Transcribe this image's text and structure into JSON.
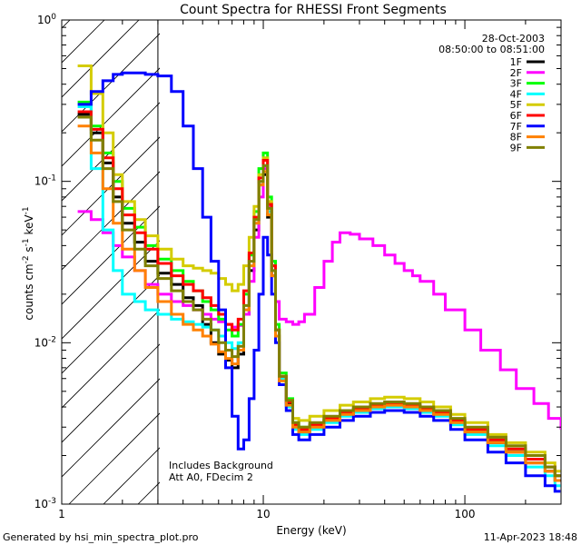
{
  "chart_data": {
    "type": "line",
    "title": "Count Spectra for RHESSI Front Segments",
    "xlabel": "Energy (keV)",
    "ylabel_base": "counts cm",
    "ylabel_exp1": "-2",
    "ylabel_mid": " s",
    "ylabel_exp2": "-1",
    "ylabel_end": " keV",
    "ylabel_exp3": "-1",
    "xscale": "log",
    "yscale": "log",
    "xlim": [
      1,
      300
    ],
    "ylim": [
      0.001,
      1
    ],
    "x_tick_labels": [
      {
        "value": 1,
        "label": "1"
      },
      {
        "value": 10,
        "label": "10"
      },
      {
        "value": 100,
        "label": "100"
      }
    ],
    "y_tick_labels": [
      {
        "value": 1,
        "mant": "10",
        "exp": "0"
      },
      {
        "value": 0.1,
        "mant": "10",
        "exp": "-1"
      },
      {
        "value": 0.01,
        "mant": "10",
        "exp": "-2"
      },
      {
        "value": 0.001,
        "mant": "10",
        "exp": "-3"
      }
    ],
    "attenuator_energy_limit": 3,
    "date": "28-Oct-2003",
    "time_range": "08:50:00 to 08:51:00",
    "notes": [
      "Includes Background",
      "Att A0, FDecim 2"
    ],
    "series": [
      {
        "name": "1F",
        "color": "#000000",
        "x": [
          1.2,
          1.4,
          1.6,
          1.8,
          2.0,
          2.3,
          2.6,
          3.0,
          3.5,
          4.0,
          4.5,
          5.0,
          5.5,
          6.0,
          6.5,
          7.0,
          7.5,
          8.0,
          8.5,
          9.0,
          9.5,
          10.0,
          10.5,
          11.0,
          11.5,
          12.0,
          13.0,
          14.0,
          15.0,
          17.0,
          20.0,
          24.0,
          28.0,
          34.0,
          40.0,
          50.0,
          60.0,
          70.0,
          85.0,
          100.0,
          130.0,
          160.0,
          200.0,
          250.0,
          280.0
        ],
        "y": [
          0.26,
          0.2,
          0.13,
          0.08,
          0.055,
          0.042,
          0.032,
          0.027,
          0.023,
          0.019,
          0.017,
          0.013,
          0.01,
          0.0085,
          0.0078,
          0.007,
          0.0085,
          0.015,
          0.028,
          0.05,
          0.095,
          0.11,
          0.06,
          0.026,
          0.011,
          0.006,
          0.0042,
          0.003,
          0.0028,
          0.003,
          0.0033,
          0.0036,
          0.0038,
          0.004,
          0.0041,
          0.004,
          0.0038,
          0.0036,
          0.0032,
          0.0028,
          0.0024,
          0.0021,
          0.0018,
          0.0016,
          0.0014
        ]
      },
      {
        "name": "2F",
        "color": "#ff00ff",
        "x": [
          1.2,
          1.4,
          1.6,
          1.8,
          2.0,
          2.3,
          2.6,
          3.0,
          3.5,
          4.0,
          4.5,
          5.0,
          5.5,
          6.0,
          6.5,
          7.0,
          7.5,
          8.0,
          8.5,
          9.0,
          9.5,
          10.0,
          10.5,
          11.0,
          11.5,
          12.0,
          13.0,
          14.0,
          15.0,
          16.0,
          18.0,
          20.0,
          22.0,
          24.0,
          27.0,
          30.0,
          35.0,
          40.0,
          45.0,
          50.0,
          55.0,
          60.0,
          70.0,
          80.0,
          100.0,
          120.0,
          150.0,
          180.0,
          220.0,
          260.0,
          300.0
        ],
        "y": [
          0.065,
          0.058,
          0.048,
          0.04,
          0.034,
          0.028,
          0.023,
          0.02,
          0.018,
          0.017,
          0.016,
          0.015,
          0.014,
          0.0135,
          0.013,
          0.0125,
          0.0128,
          0.015,
          0.024,
          0.045,
          0.08,
          0.12,
          0.07,
          0.03,
          0.018,
          0.014,
          0.0135,
          0.013,
          0.0135,
          0.015,
          0.022,
          0.032,
          0.042,
          0.048,
          0.047,
          0.044,
          0.04,
          0.035,
          0.031,
          0.028,
          0.026,
          0.024,
          0.02,
          0.016,
          0.012,
          0.009,
          0.0068,
          0.0052,
          0.0042,
          0.0034,
          0.0029
        ]
      },
      {
        "name": "3F",
        "color": "#00ff00",
        "x": [
          1.2,
          1.4,
          1.6,
          1.8,
          2.0,
          2.3,
          2.6,
          3.0,
          3.5,
          4.0,
          4.5,
          5.0,
          5.5,
          6.0,
          6.5,
          7.0,
          7.5,
          8.0,
          8.5,
          9.0,
          9.5,
          10.0,
          10.5,
          11.0,
          11.5,
          12.0,
          13.0,
          14.0,
          15.0,
          17.0,
          20.0,
          24.0,
          28.0,
          34.0,
          40.0,
          50.0,
          60.0,
          70.0,
          85.0,
          100.0,
          130.0,
          160.0,
          200.0,
          250.0,
          280.0
        ],
        "y": [
          0.31,
          0.22,
          0.15,
          0.1,
          0.068,
          0.052,
          0.04,
          0.033,
          0.028,
          0.024,
          0.021,
          0.018,
          0.016,
          0.014,
          0.012,
          0.011,
          0.013,
          0.02,
          0.035,
          0.065,
          0.12,
          0.15,
          0.08,
          0.032,
          0.013,
          0.0065,
          0.0045,
          0.0032,
          0.003,
          0.0031,
          0.0034,
          0.0037,
          0.0039,
          0.0041,
          0.0042,
          0.0041,
          0.0039,
          0.0037,
          0.0033,
          0.0029,
          0.0025,
          0.0022,
          0.0019,
          0.0017,
          0.0015
        ]
      },
      {
        "name": "4F",
        "color": "#00ffff",
        "x": [
          1.2,
          1.4,
          1.6,
          1.8,
          2.0,
          2.3,
          2.6,
          3.0,
          3.5,
          4.0,
          4.5,
          5.0,
          5.5,
          6.0,
          6.5,
          7.0,
          7.5,
          8.0,
          8.5,
          9.0,
          9.5,
          10.0,
          10.5,
          11.0,
          11.5,
          12.0,
          13.0,
          14.0,
          15.0,
          17.0,
          20.0,
          24.0,
          28.0,
          34.0,
          40.0,
          50.0,
          60.0,
          70.0,
          85.0,
          100.0,
          130.0,
          160.0,
          200.0,
          250.0,
          280.0
        ],
        "y": [
          0.29,
          0.12,
          0.05,
          0.028,
          0.02,
          0.018,
          0.016,
          0.015,
          0.014,
          0.0135,
          0.013,
          0.0125,
          0.012,
          0.011,
          0.01,
          0.0092,
          0.01,
          0.016,
          0.03,
          0.055,
          0.1,
          0.125,
          0.065,
          0.028,
          0.012,
          0.006,
          0.004,
          0.0029,
          0.0027,
          0.0029,
          0.0032,
          0.0035,
          0.0037,
          0.0039,
          0.004,
          0.0039,
          0.0037,
          0.0035,
          0.0031,
          0.0027,
          0.0023,
          0.002,
          0.0017,
          0.0015,
          0.0013
        ]
      },
      {
        "name": "5F",
        "color": "#d4cc00",
        "x": [
          1.2,
          1.4,
          1.6,
          1.8,
          2.0,
          2.3,
          2.6,
          3.0,
          3.5,
          4.0,
          4.5,
          5.0,
          5.5,
          6.0,
          6.5,
          7.0,
          7.5,
          8.0,
          8.5,
          9.0,
          9.5,
          10.0,
          10.5,
          11.0,
          11.5,
          12.0,
          13.0,
          14.0,
          15.0,
          17.0,
          20.0,
          24.0,
          28.0,
          34.0,
          40.0,
          50.0,
          60.0,
          70.0,
          85.0,
          100.0,
          130.0,
          160.0,
          200.0,
          250.0,
          280.0
        ],
        "y": [
          0.52,
          0.35,
          0.2,
          0.11,
          0.075,
          0.058,
          0.046,
          0.038,
          0.033,
          0.03,
          0.029,
          0.028,
          0.027,
          0.025,
          0.023,
          0.021,
          0.023,
          0.03,
          0.045,
          0.07,
          0.11,
          0.14,
          0.075,
          0.03,
          0.012,
          0.0062,
          0.0044,
          0.0034,
          0.0033,
          0.0035,
          0.0038,
          0.0041,
          0.0043,
          0.0045,
          0.0046,
          0.0045,
          0.0043,
          0.004,
          0.0036,
          0.0032,
          0.0027,
          0.0024,
          0.0021,
          0.0018,
          0.0016
        ]
      },
      {
        "name": "6F",
        "color": "#ff0000",
        "x": [
          1.2,
          1.4,
          1.6,
          1.8,
          2.0,
          2.3,
          2.6,
          3.0,
          3.5,
          4.0,
          4.5,
          5.0,
          5.5,
          6.0,
          6.5,
          7.0,
          7.5,
          8.0,
          8.5,
          9.0,
          9.5,
          10.0,
          10.5,
          11.0,
          11.5,
          12.0,
          13.0,
          14.0,
          15.0,
          17.0,
          20.0,
          24.0,
          28.0,
          34.0,
          40.0,
          50.0,
          60.0,
          70.0,
          85.0,
          100.0,
          130.0,
          160.0,
          200.0,
          250.0,
          280.0
        ],
        "y": [
          0.27,
          0.21,
          0.14,
          0.09,
          0.062,
          0.048,
          0.038,
          0.031,
          0.026,
          0.023,
          0.021,
          0.019,
          0.017,
          0.015,
          0.013,
          0.012,
          0.014,
          0.021,
          0.036,
          0.06,
          0.105,
          0.135,
          0.072,
          0.03,
          0.012,
          0.0062,
          0.0043,
          0.0031,
          0.0029,
          0.0031,
          0.0034,
          0.0037,
          0.0039,
          0.0041,
          0.0042,
          0.0041,
          0.0039,
          0.0037,
          0.0033,
          0.0029,
          0.0025,
          0.0022,
          0.0019,
          0.0017,
          0.0015
        ]
      },
      {
        "name": "7F",
        "color": "#0000ff",
        "x": [
          1.2,
          1.4,
          1.6,
          1.8,
          2.0,
          2.3,
          2.6,
          3.0,
          3.5,
          4.0,
          4.5,
          5.0,
          5.5,
          6.0,
          6.5,
          7.0,
          7.5,
          8.0,
          8.5,
          9.0,
          9.5,
          10.0,
          10.5,
          11.0,
          11.5,
          12.0,
          13.0,
          14.0,
          15.0,
          17.0,
          20.0,
          24.0,
          28.0,
          34.0,
          40.0,
          50.0,
          60.0,
          70.0,
          85.0,
          100.0,
          130.0,
          160.0,
          200.0,
          250.0,
          280.0
        ],
        "y": [
          0.3,
          0.36,
          0.42,
          0.46,
          0.47,
          0.47,
          0.46,
          0.45,
          0.36,
          0.22,
          0.12,
          0.06,
          0.032,
          0.016,
          0.007,
          0.0035,
          0.0022,
          0.0025,
          0.0045,
          0.009,
          0.02,
          0.045,
          0.035,
          0.02,
          0.01,
          0.0055,
          0.0038,
          0.0027,
          0.0025,
          0.0027,
          0.003,
          0.0033,
          0.0035,
          0.0037,
          0.0038,
          0.0037,
          0.0035,
          0.0033,
          0.0029,
          0.0025,
          0.0021,
          0.0018,
          0.0015,
          0.0013,
          0.0012
        ]
      },
      {
        "name": "8F",
        "color": "#ff8000",
        "x": [
          1.2,
          1.4,
          1.6,
          1.8,
          2.0,
          2.3,
          2.6,
          3.0,
          3.5,
          4.0,
          4.5,
          5.0,
          5.5,
          6.0,
          6.5,
          7.0,
          7.5,
          8.0,
          8.5,
          9.0,
          9.5,
          10.0,
          10.5,
          11.0,
          11.5,
          12.0,
          13.0,
          14.0,
          15.0,
          17.0,
          20.0,
          24.0,
          28.0,
          34.0,
          40.0,
          50.0,
          60.0,
          70.0,
          85.0,
          100.0,
          130.0,
          160.0,
          200.0,
          250.0,
          280.0
        ],
        "y": [
          0.22,
          0.15,
          0.09,
          0.055,
          0.038,
          0.028,
          0.022,
          0.018,
          0.015,
          0.013,
          0.012,
          0.011,
          0.0098,
          0.0088,
          0.008,
          0.0074,
          0.009,
          0.016,
          0.03,
          0.055,
          0.095,
          0.115,
          0.062,
          0.026,
          0.011,
          0.0058,
          0.0041,
          0.003,
          0.0028,
          0.003,
          0.0033,
          0.0036,
          0.0038,
          0.004,
          0.0041,
          0.004,
          0.0038,
          0.0036,
          0.0032,
          0.0028,
          0.0024,
          0.0021,
          0.0018,
          0.0016,
          0.0014
        ]
      },
      {
        "name": "9F",
        "color": "#808000",
        "x": [
          1.2,
          1.4,
          1.6,
          1.8,
          2.0,
          2.3,
          2.6,
          3.0,
          3.5,
          4.0,
          4.5,
          5.0,
          5.5,
          6.0,
          6.5,
          7.0,
          7.5,
          8.0,
          8.5,
          9.0,
          9.5,
          10.0,
          10.5,
          11.0,
          11.5,
          12.0,
          13.0,
          14.0,
          15.0,
          17.0,
          20.0,
          24.0,
          28.0,
          34.0,
          40.0,
          50.0,
          60.0,
          70.0,
          85.0,
          100.0,
          130.0,
          160.0,
          200.0,
          250.0,
          280.0
        ],
        "y": [
          0.25,
          0.18,
          0.12,
          0.075,
          0.05,
          0.038,
          0.03,
          0.025,
          0.021,
          0.018,
          0.016,
          0.014,
          0.012,
          0.01,
          0.009,
          0.0082,
          0.0095,
          0.017,
          0.032,
          0.058,
          0.1,
          0.125,
          0.068,
          0.028,
          0.012,
          0.0062,
          0.0044,
          0.0032,
          0.003,
          0.0032,
          0.0035,
          0.0038,
          0.004,
          0.0042,
          0.0043,
          0.0042,
          0.004,
          0.0038,
          0.0034,
          0.003,
          0.0026,
          0.0023,
          0.002,
          0.0017,
          0.0015
        ]
      }
    ],
    "grid": false,
    "legend": "top-right"
  },
  "footer": {
    "generated_by": "Generated by hsi_min_spectra_plot.pro",
    "timestamp": "11-Apr-2023 18:48"
  }
}
